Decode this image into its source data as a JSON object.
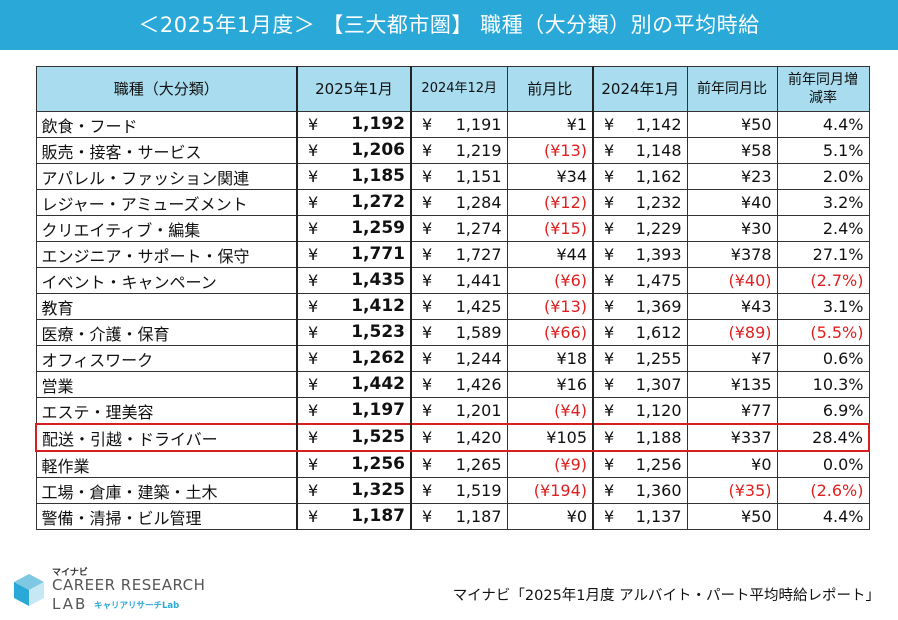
{
  "title": "＜2025年1月度＞ 【三大都市圏】 職種（大分類）別の平均時給",
  "table": {
    "headers": {
      "category": "職種（大分類）",
      "jan2025": "2025年1月",
      "dec2024": "2024年12月",
      "mom": "前月比",
      "jan2024": "2024年1月",
      "yoy": "前年同月比",
      "yoy_rate": "前年同月増減率"
    },
    "yen": "¥",
    "rows": [
      {
        "name": "飲食・フード",
        "jan2025": "1,192",
        "dec2024": "1,191",
        "mom": "¥1",
        "jan2024": "1,142",
        "yoy": "¥50",
        "rate": "4.4%"
      },
      {
        "name": "販売・接客・サービス",
        "jan2025": "1,206",
        "dec2024": "1,219",
        "mom": "(¥13)",
        "jan2024": "1,148",
        "yoy": "¥58",
        "rate": "5.1%"
      },
      {
        "name": "アパレル・ファッション関連",
        "jan2025": "1,185",
        "dec2024": "1,151",
        "mom": "¥34",
        "jan2024": "1,162",
        "yoy": "¥23",
        "rate": "2.0%"
      },
      {
        "name": "レジャー・アミューズメント",
        "jan2025": "1,272",
        "dec2024": "1,284",
        "mom": "(¥12)",
        "jan2024": "1,232",
        "yoy": "¥40",
        "rate": "3.2%"
      },
      {
        "name": "クリエイティブ・編集",
        "jan2025": "1,259",
        "dec2024": "1,274",
        "mom": "(¥15)",
        "jan2024": "1,229",
        "yoy": "¥30",
        "rate": "2.4%"
      },
      {
        "name": "エンジニア・サポート・保守",
        "jan2025": "1,771",
        "dec2024": "1,727",
        "mom": "¥44",
        "jan2024": "1,393",
        "yoy": "¥378",
        "rate": "27.1%"
      },
      {
        "name": "イベント・キャンペーン",
        "jan2025": "1,435",
        "dec2024": "1,441",
        "mom": "(¥6)",
        "jan2024": "1,475",
        "yoy": "(¥40)",
        "rate": "(2.7%)"
      },
      {
        "name": "教育",
        "jan2025": "1,412",
        "dec2024": "1,425",
        "mom": "(¥13)",
        "jan2024": "1,369",
        "yoy": "¥43",
        "rate": "3.1%"
      },
      {
        "name": "医療・介護・保育",
        "jan2025": "1,523",
        "dec2024": "1,589",
        "mom": "(¥66)",
        "jan2024": "1,612",
        "yoy": "(¥89)",
        "rate": "(5.5%)"
      },
      {
        "name": "オフィスワーク",
        "jan2025": "1,262",
        "dec2024": "1,244",
        "mom": "¥18",
        "jan2024": "1,255",
        "yoy": "¥7",
        "rate": "0.6%"
      },
      {
        "name": "営業",
        "jan2025": "1,442",
        "dec2024": "1,426",
        "mom": "¥16",
        "jan2024": "1,307",
        "yoy": "¥135",
        "rate": "10.3%"
      },
      {
        "name": "エステ・理美容",
        "jan2025": "1,197",
        "dec2024": "1,201",
        "mom": "(¥4)",
        "jan2024": "1,120",
        "yoy": "¥77",
        "rate": "6.9%"
      },
      {
        "name": "配送・引越・ドライバー",
        "jan2025": "1,525",
        "dec2024": "1,420",
        "mom": "¥105",
        "jan2024": "1,188",
        "yoy": "¥337",
        "rate": "28.4%",
        "highlight": true
      },
      {
        "name": "軽作業",
        "jan2025": "1,256",
        "dec2024": "1,265",
        "mom": "(¥9)",
        "jan2024": "1,256",
        "yoy": "¥0",
        "rate": "0.0%"
      },
      {
        "name": "工場・倉庫・建築・土木",
        "jan2025": "1,325",
        "dec2024": "1,519",
        "mom": "(¥194)",
        "jan2024": "1,360",
        "yoy": "(¥35)",
        "rate": "(2.6%)"
      },
      {
        "name": "警備・清掃・ビル管理",
        "jan2025": "1,187",
        "dec2024": "1,187",
        "mom": "¥0",
        "jan2024": "1,137",
        "yoy": "¥50",
        "rate": "4.4%"
      }
    ]
  },
  "footer": {
    "source": "マイナビ「2025年1月度 アルバイト・パート平均時給レポート」"
  },
  "logo": {
    "mynavi": "マイナビ",
    "line1": "CAREER RESEARCH",
    "line2": "LAB",
    "kana": "キャリアリサーチLab"
  },
  "colors": {
    "title_bg": "#2aa9d8",
    "header_bg": "#a8dcee",
    "negative": "#e02020",
    "highlight_border": "#d42020"
  }
}
